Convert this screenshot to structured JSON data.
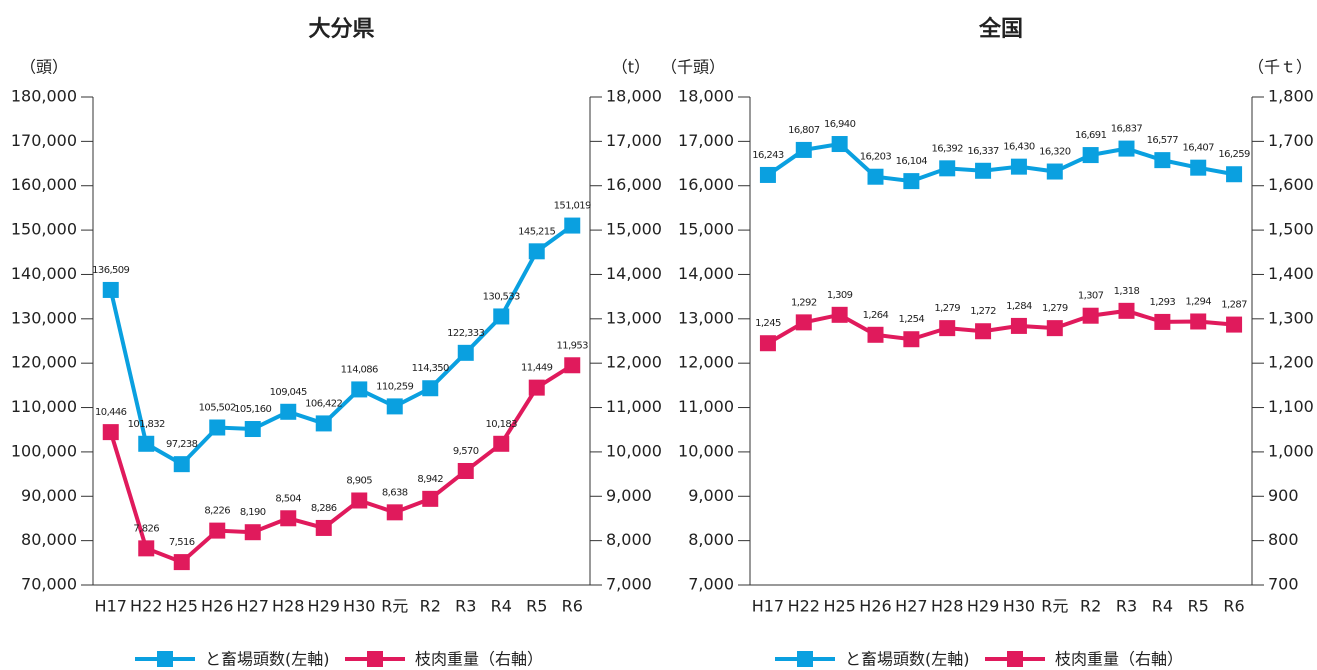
{
  "chart_data": [
    {
      "type": "line",
      "title": "大分県",
      "y_label": "（頭）",
      "y2_label": "（t）",
      "categories": [
        "H17",
        "H22",
        "H25",
        "H26",
        "H27",
        "H28",
        "H29",
        "H30",
        "R元",
        "R2",
        "R3",
        "R4",
        "R5",
        "R6"
      ],
      "ylim": [
        70000,
        180000
      ],
      "yticks": [
        {
          "value": 70000,
          "label": "70,000"
        },
        {
          "value": 80000,
          "label": "80,000"
        },
        {
          "value": 90000,
          "label": "90,000"
        },
        {
          "value": 100000,
          "label": "100,000"
        },
        {
          "value": 110000,
          "label": "110,000"
        },
        {
          "value": 120000,
          "label": "120,000"
        },
        {
          "value": 130000,
          "label": "130,000"
        },
        {
          "value": 140000,
          "label": "140,000"
        },
        {
          "value": 150000,
          "label": "150,000"
        },
        {
          "value": 160000,
          "label": "160,000"
        },
        {
          "value": 170000,
          "label": "170,000"
        },
        {
          "value": 180000,
          "label": "180,000"
        }
      ],
      "y2lim": [
        7000,
        18000
      ],
      "y2ticks": [
        {
          "value": 7000,
          "label": "7,000"
        },
        {
          "value": 8000,
          "label": "8,000"
        },
        {
          "value": 9000,
          "label": "9,000"
        },
        {
          "value": 10000,
          "label": "10,000"
        },
        {
          "value": 11000,
          "label": "11,000"
        },
        {
          "value": 12000,
          "label": "12,000"
        },
        {
          "value": 13000,
          "label": "13,000"
        },
        {
          "value": 14000,
          "label": "14,000"
        },
        {
          "value": 15000,
          "label": "15,000"
        },
        {
          "value": 16000,
          "label": "16,000"
        },
        {
          "value": 17000,
          "label": "17,000"
        },
        {
          "value": 18000,
          "label": "18,000"
        }
      ],
      "series": [
        {
          "name": "と畜場頭数(左軸)",
          "color": "#0aa0e0",
          "axis": "y",
          "values": [
            136509,
            101832,
            97238,
            105502,
            105160,
            109045,
            106422,
            114086,
            110259,
            114350,
            122333,
            130533,
            145215,
            151019
          ],
          "value_labels": [
            "136,509",
            "101,832",
            "97,238",
            "105,502",
            "105,160",
            "109,045",
            "106,422",
            "114,086",
            "110,259",
            "114,350",
            "122,333",
            "130,533",
            "145,215",
            "151,019"
          ]
        },
        {
          "name": "枝肉重量（右軸）",
          "color": "#e01a5c",
          "axis": "y2",
          "values": [
            10446,
            7826,
            7516,
            8226,
            8190,
            8504,
            8286,
            8905,
            8638,
            8942,
            9570,
            10183,
            11449,
            11953
          ],
          "value_labels": [
            "10,446",
            "7,826",
            "7,516",
            "8,226",
            "8,190",
            "8,504",
            "8,286",
            "8,905",
            "8,638",
            "8,942",
            "9,570",
            "10,183",
            "11,449",
            "11,953"
          ]
        }
      ]
    },
    {
      "type": "line",
      "title": "全国",
      "y_label": "（千頭）",
      "y2_label": "（千ｔ）",
      "categories": [
        "H17",
        "H22",
        "H25",
        "H26",
        "H27",
        "H28",
        "H29",
        "H30",
        "R元",
        "R2",
        "R3",
        "R4",
        "R5",
        "R6"
      ],
      "ylim": [
        7000,
        18000
      ],
      "yticks": [
        {
          "value": 7000,
          "label": "7,000"
        },
        {
          "value": 8000,
          "label": "8,000"
        },
        {
          "value": 9000,
          "label": "9,000"
        },
        {
          "value": 10000,
          "label": "10,000"
        },
        {
          "value": 11000,
          "label": "11,000"
        },
        {
          "value": 12000,
          "label": "12,000"
        },
        {
          "value": 13000,
          "label": "13,000"
        },
        {
          "value": 14000,
          "label": "14,000"
        },
        {
          "value": 15000,
          "label": "15,000"
        },
        {
          "value": 16000,
          "label": "16,000"
        },
        {
          "value": 17000,
          "label": "17,000"
        },
        {
          "value": 18000,
          "label": "18,000"
        }
      ],
      "y2lim": [
        700,
        1800
      ],
      "y2ticks": [
        700,
        800,
        900,
        {
          "value": 1000,
          "label": "1,000"
        },
        {
          "value": 1100,
          "label": "1,100"
        },
        {
          "value": 1200,
          "label": "1,200"
        },
        {
          "value": 1300,
          "label": "1,300"
        },
        {
          "value": 1400,
          "label": "1,400"
        },
        {
          "value": 1500,
          "label": "1,500"
        },
        {
          "value": 1600,
          "label": "1,600"
        },
        {
          "value": 1700,
          "label": "1,700"
        },
        {
          "value": 1800,
          "label": "1,800"
        }
      ],
      "series": [
        {
          "name": "と畜場頭数(左軸)",
          "color": "#0aa0e0",
          "axis": "y",
          "values": [
            16243,
            16807,
            16940,
            16203,
            16104,
            16392,
            16337,
            16430,
            16320,
            16691,
            16837,
            16577,
            16407,
            16259
          ],
          "value_labels": [
            "16,243",
            "16,807",
            "16,940",
            "16,203",
            "16,104",
            "16,392",
            "16,337",
            "16,430",
            "16,320",
            "16,691",
            "16,837",
            "16,577",
            "16,407",
            "16,259"
          ]
        },
        {
          "name": "枝肉重量（右軸）",
          "color": "#e01a5c",
          "axis": "y2",
          "values": [
            1245,
            1292,
            1309,
            1264,
            1254,
            1279,
            1272,
            1284,
            1279,
            1307,
            1318,
            1293,
            1294,
            1287
          ],
          "value_labels": [
            "1,245",
            "1,292",
            "1,309",
            "1,264",
            "1,254",
            "1,279",
            "1,272",
            "1,284",
            "1,279",
            "1,307",
            "1,318",
            "1,293",
            "1,294",
            "1,287"
          ]
        }
      ]
    }
  ]
}
